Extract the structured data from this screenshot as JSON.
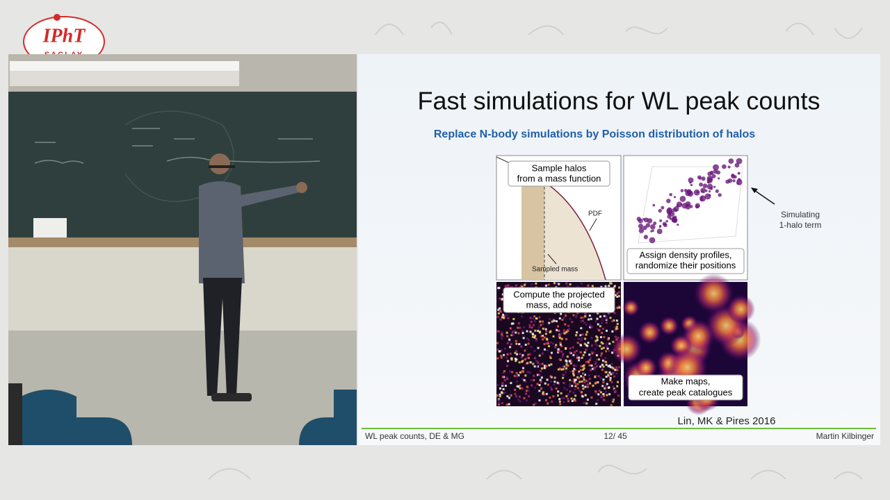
{
  "logo": {
    "name": "IPhT",
    "place": "SACLAY"
  },
  "slide": {
    "title": "Fast simulations for WL peak counts",
    "subtitle": "Replace N-body simulations by Poisson distribution of halos",
    "panels": [
      {
        "caption": [
          "Sample halos",
          "from a mass function"
        ],
        "labels": [
          "PDF",
          "Sampled mass"
        ]
      },
      {
        "caption": [
          "Assign density profiles,",
          "randomize their positions"
        ]
      },
      {
        "caption": [
          "Compute the projected",
          "mass, add noise"
        ]
      },
      {
        "caption": [
          "Make maps,",
          "create peak catalogues"
        ]
      }
    ],
    "annotation": [
      "Simulating",
      "1-halo term"
    ],
    "citation": "Lin, MK & Pires 2016",
    "footer": {
      "left": "WL peak counts, DE & MG",
      "page": "12/ 45",
      "author": "Martin Kilbinger"
    }
  }
}
